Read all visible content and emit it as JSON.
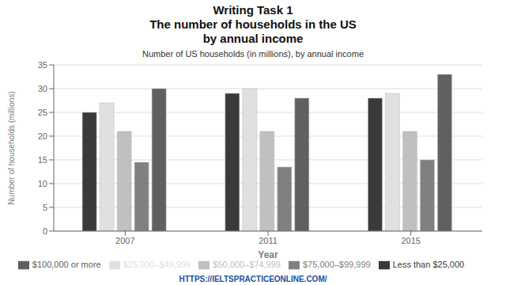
{
  "chart_data": {
    "type": "bar",
    "title": "Writing Task 1\nThe number of households in the US\nby annual income",
    "subtitle": "Number of US households (in millions), by annual income",
    "annotations": [
      "HTTPS://IELTSPRACTICEONLINE.COM/"
    ],
    "categories": [
      "2007",
      "2011",
      "2015"
    ],
    "series": [
      {
        "name": "Less than $25,000",
        "color": "#3a3a3a",
        "values": [
          25,
          29,
          28
        ]
      },
      {
        "name": "$25,000–$49,999",
        "color": "#e0e0e0",
        "values": [
          27,
          30,
          29
        ]
      },
      {
        "name": "$50,000–$74,999",
        "color": "#c0c0c0",
        "values": [
          21,
          21,
          21
        ]
      },
      {
        "name": "$75,000–$99,999",
        "color": "#808080",
        "values": [
          14.5,
          13.5,
          15
        ]
      },
      {
        "name": "$100,000 or more",
        "color": "#606060",
        "values": [
          30,
          28,
          33
        ]
      }
    ],
    "xlabel": "Year",
    "ylabel": "Number of households (millions)",
    "ylim": [
      0,
      35
    ],
    "yticks": [
      0,
      5,
      10,
      15,
      20,
      25,
      30,
      35
    ],
    "grid": true,
    "legend": "bottom"
  }
}
